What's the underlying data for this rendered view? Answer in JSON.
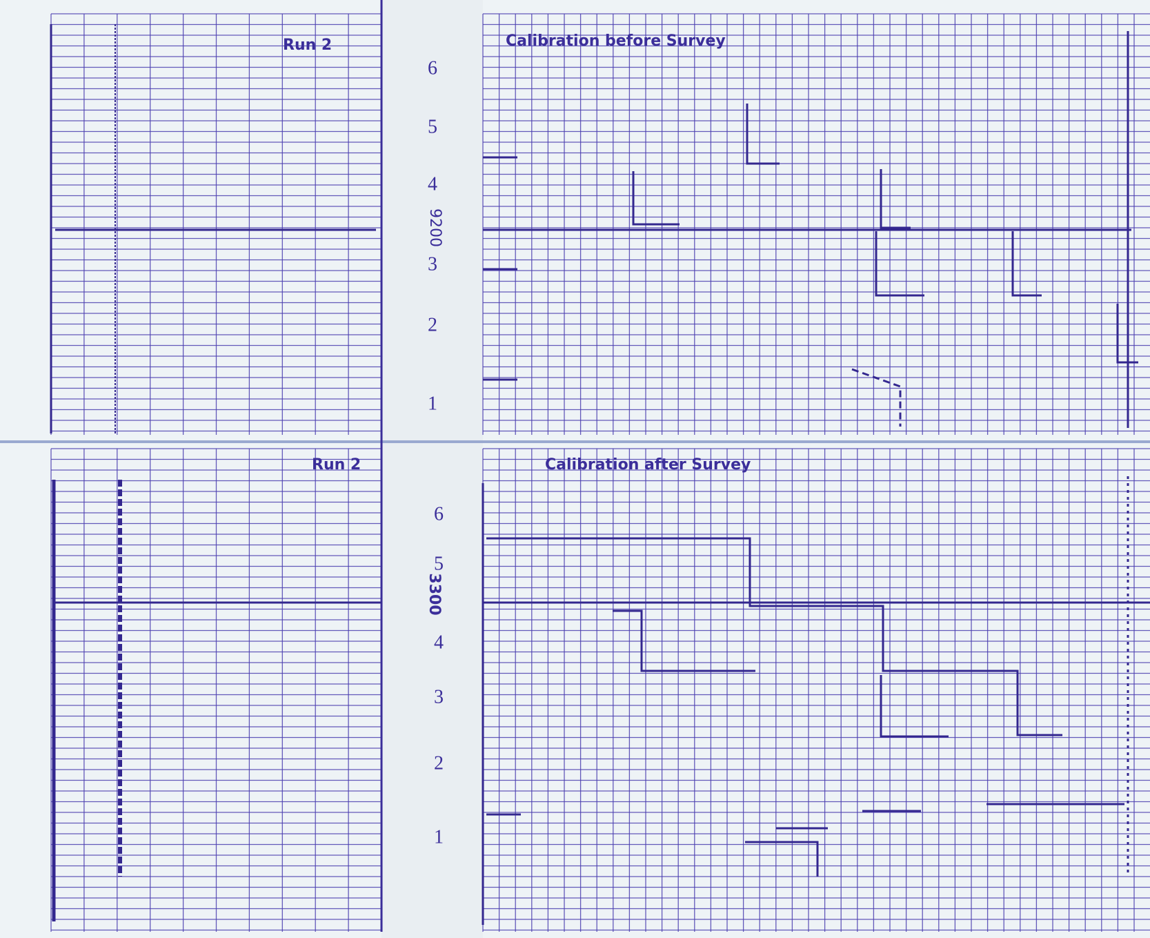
{
  "top": {
    "run": "Run 2",
    "title": "Calibration before Survey",
    "depth": "9200",
    "scale": [
      "6",
      "5",
      "4",
      "3",
      "2",
      "1"
    ]
  },
  "bottom": {
    "run": "Run 2",
    "title": "Calibration after Survey",
    "depth": "3300",
    "scale": [
      "6",
      "5",
      "4",
      "3",
      "2",
      "1"
    ]
  }
}
